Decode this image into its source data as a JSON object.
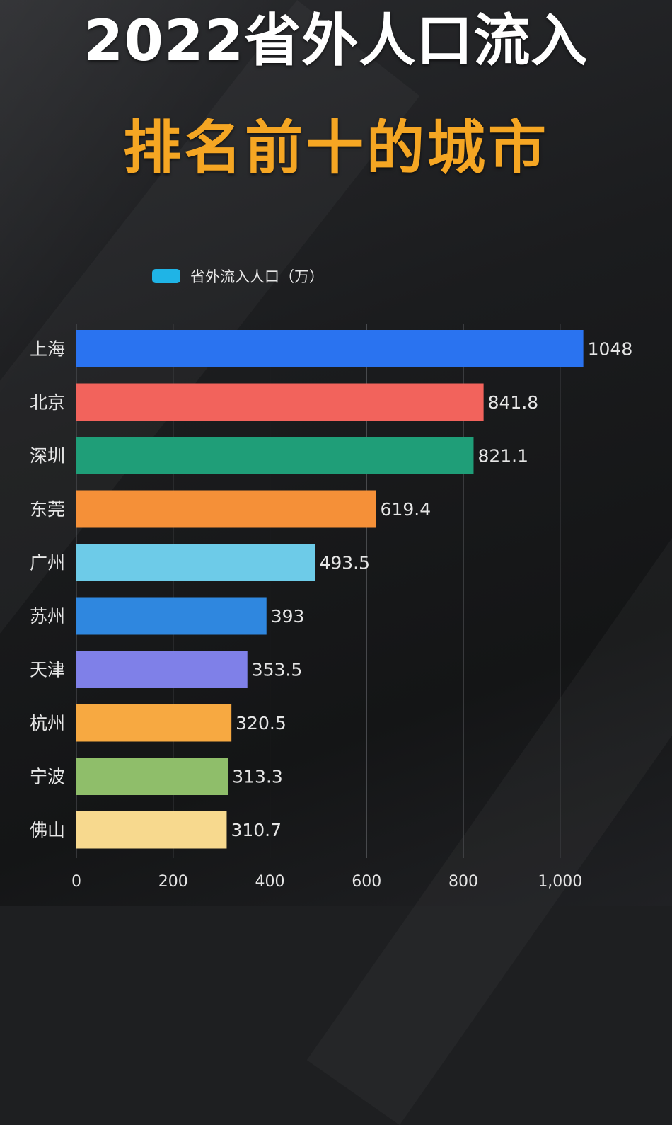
{
  "title": "2022省外人口流入",
  "subtitle": "排名前十的城市",
  "colors": {
    "background": "#1e1f21",
    "title": "#ffffff",
    "subtitle": "#f5a623",
    "grid": "#55575b",
    "text": "#e6e6e6",
    "legend": "#1fb4e6"
  },
  "chart_data": {
    "type": "bar",
    "orientation": "horizontal",
    "legend_position": "top-left",
    "grid": true,
    "series": [
      {
        "name": "省外流入人口（万）",
        "values": [
          1048,
          841.8,
          821.1,
          619.4,
          493.5,
          393,
          353.5,
          320.5,
          313.3,
          310.7
        ]
      }
    ],
    "categories": [
      "上海",
      "北京",
      "深圳",
      "东莞",
      "广州",
      "苏州",
      "天津",
      "杭州",
      "宁波",
      "佛山"
    ],
    "value_labels": [
      "1048",
      "841.8",
      "821.1",
      "619.4",
      "493.5",
      "393",
      "353.5",
      "320.5",
      "313.3",
      "310.7"
    ],
    "bar_colors": [
      "#2a73f0",
      "#f2635c",
      "#1f9e78",
      "#f59038",
      "#6dcbe8",
      "#2f87df",
      "#7f80e8",
      "#f7a941",
      "#8fbe6a",
      "#f7d98e"
    ],
    "xlim": [
      0,
      1050
    ],
    "xticks": [
      0,
      200,
      400,
      600,
      800,
      1000
    ],
    "xtick_labels": [
      "0",
      "200",
      "400",
      "600",
      "800",
      "1,000"
    ]
  }
}
